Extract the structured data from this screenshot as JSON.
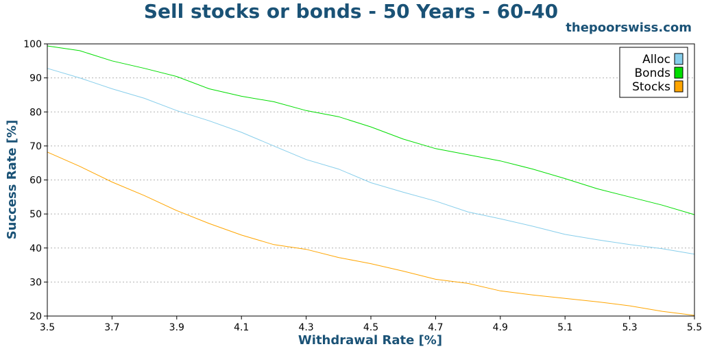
{
  "chart_data": {
    "type": "line",
    "title": "Sell stocks or bonds - 50 Years - 60-40",
    "watermark": "thepoorswiss.com",
    "xlabel": "Withdrawal Rate [%]",
    "ylabel": "Success Rate [%]",
    "xlim": [
      3.5,
      5.5
    ],
    "ylim": [
      20,
      100
    ],
    "xticks": [
      "3.5",
      "3.7",
      "3.9",
      "4.1",
      "4.3",
      "4.5",
      "4.7",
      "4.9",
      "5.1",
      "5.3",
      "5.5"
    ],
    "yticks": [
      "20",
      "30",
      "40",
      "50",
      "60",
      "70",
      "80",
      "90",
      "100"
    ],
    "grid": "horizontal dotted",
    "legend_position": "top-right",
    "x": [
      3.5,
      3.6,
      3.7,
      3.8,
      3.9,
      4.0,
      4.1,
      4.2,
      4.3,
      4.4,
      4.5,
      4.6,
      4.7,
      4.8,
      4.9,
      5.0,
      5.1,
      5.2,
      5.3,
      5.4,
      5.5
    ],
    "series": [
      {
        "name": "Alloc",
        "color": "#87ceeb",
        "values": [
          92.8,
          90.0,
          86.8,
          84.0,
          80.4,
          77.4,
          74.0,
          70.0,
          66.0,
          63.2,
          59.2,
          56.4,
          53.8,
          50.6,
          48.6,
          46.4,
          44.0,
          42.4,
          41.0,
          39.8,
          38.2
        ]
      },
      {
        "name": "Bonds",
        "color": "#00dd00",
        "values": [
          99.4,
          98.0,
          95.0,
          92.8,
          90.4,
          86.8,
          84.6,
          83.0,
          80.4,
          78.6,
          75.6,
          72.0,
          69.2,
          67.4,
          65.6,
          63.2,
          60.4,
          57.4,
          55.0,
          52.6,
          49.8
        ]
      },
      {
        "name": "Stocks",
        "color": "#ffa500",
        "values": [
          68.2,
          64.0,
          59.4,
          55.4,
          51.0,
          47.2,
          43.8,
          41.0,
          39.6,
          37.2,
          35.4,
          33.2,
          30.8,
          29.6,
          27.4,
          26.2,
          25.2,
          24.2,
          23.0,
          21.4,
          20.2
        ]
      }
    ]
  }
}
